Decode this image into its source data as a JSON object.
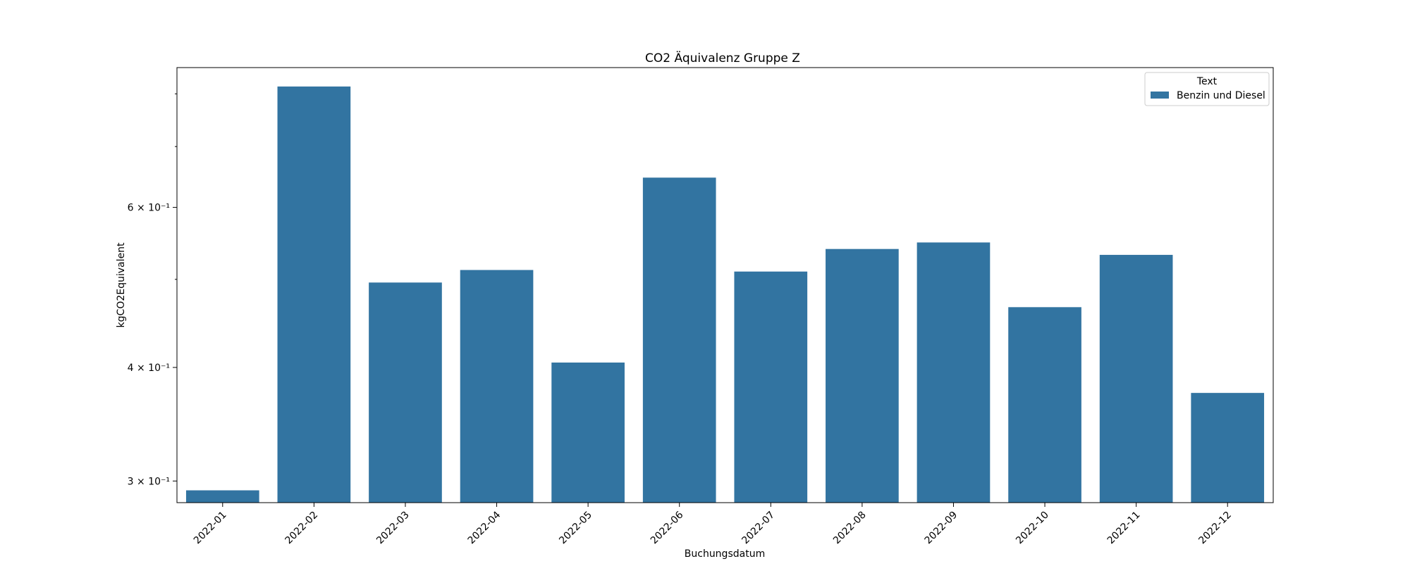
{
  "chart_data": {
    "type": "bar",
    "title": "CO2 Äquivalenz Gruppe Z",
    "xlabel": "Buchungsdatum",
    "ylabel": "kgCO2Equivalent",
    "yscale": "log",
    "ylim": [
      0.284,
      0.855
    ],
    "categories": [
      "2022-01",
      "2022-02",
      "2022-03",
      "2022-04",
      "2022-05",
      "2022-06",
      "2022-07",
      "2022-08",
      "2022-09",
      "2022-10",
      "2022-11",
      "2022-12"
    ],
    "series": [
      {
        "name": "Benzin und Diesel",
        "color": "#3274a1",
        "values": [
          0.293,
          0.815,
          0.496,
          0.512,
          0.405,
          0.647,
          0.51,
          0.54,
          0.549,
          0.466,
          0.532,
          0.375
        ]
      }
    ],
    "y_major_ticks": [
      {
        "value": 0.3,
        "label": "3 × 10⁻¹"
      },
      {
        "value": 0.4,
        "label": "4 × 10⁻¹"
      },
      {
        "value": 0.6,
        "label": "6 × 10⁻¹"
      }
    ],
    "y_minor_ticks": [
      0.5,
      0.7,
      0.8
    ],
    "legend": {
      "title": "Text",
      "placement": "top-right"
    },
    "grid": false
  }
}
